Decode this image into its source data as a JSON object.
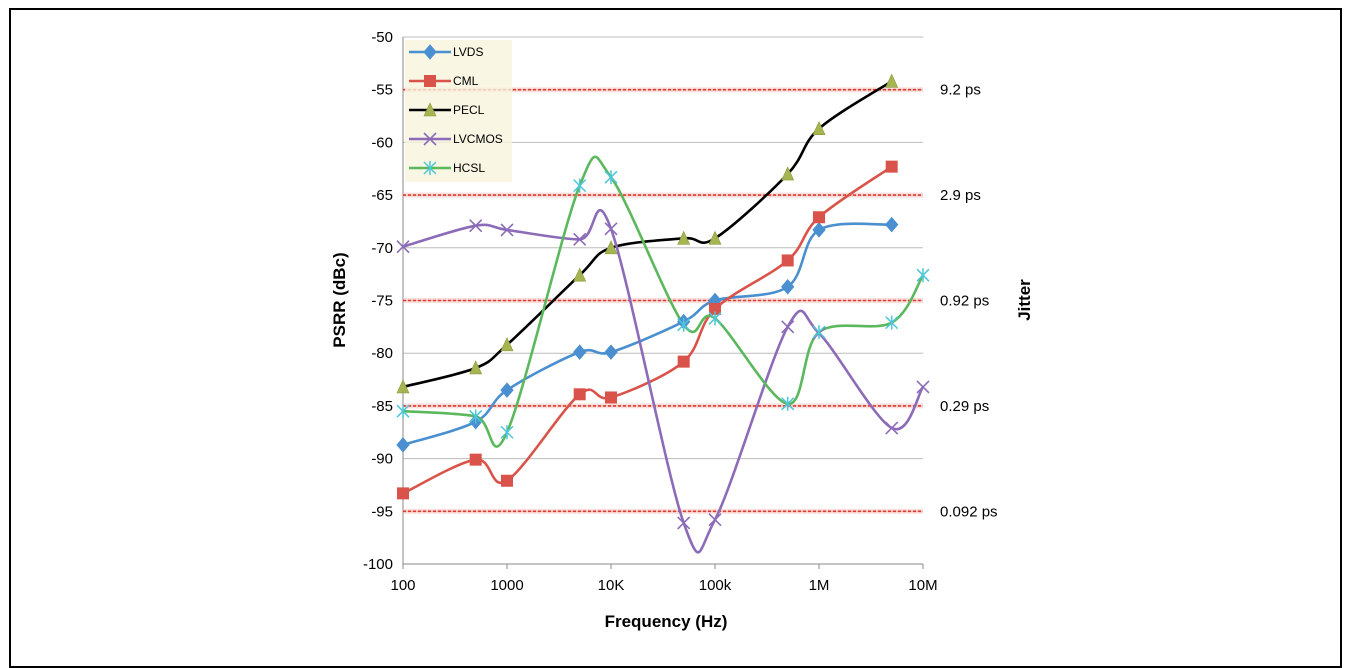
{
  "chart_data": {
    "type": "line",
    "x_scale": "log",
    "xlabel": "Frequency (Hz)",
    "ylabel": "PSRR (dBc)",
    "y2label": "Jitter",
    "xlim": [
      100,
      10000000
    ],
    "ylim": [
      -100,
      -50
    ],
    "x_ticks": [
      {
        "value": 100,
        "label": "100"
      },
      {
        "value": 1000,
        "label": "1000"
      },
      {
        "value": 10000,
        "label": "10K"
      },
      {
        "value": 100000,
        "label": "100k"
      },
      {
        "value": 1000000,
        "label": "1M"
      },
      {
        "value": 10000000,
        "label": "10M"
      }
    ],
    "y_ticks": [
      -50,
      -55,
      -60,
      -65,
      -70,
      -75,
      -80,
      -85,
      -90,
      -95,
      -100
    ],
    "jitter_lines": [
      {
        "y": -55,
        "label": "9.2 ps"
      },
      {
        "y": -65,
        "label": "2.9 ps"
      },
      {
        "y": -75,
        "label": "0.92 ps"
      },
      {
        "y": -85,
        "label": "0.29 ps"
      },
      {
        "y": -95,
        "label": "0.092 ps"
      }
    ],
    "grid": true,
    "legend_position": "top-left",
    "series": [
      {
        "name": "LVDS",
        "color": "#4a8fcf",
        "marker": "diamond",
        "x": [
          100,
          500,
          1000,
          5000,
          10000,
          50000,
          100000,
          500000,
          1000000,
          5000000
        ],
        "y": [
          -88.7,
          -86.5,
          -83.5,
          -79.9,
          -79.9,
          -77,
          -75,
          -73.7,
          -68.3,
          -67.8
        ]
      },
      {
        "name": "CML",
        "color": "#d9534a",
        "marker": "square",
        "x": [
          100,
          500,
          1000,
          5000,
          10000,
          50000,
          100000,
          500000,
          1000000,
          5000000
        ],
        "y": [
          -93.3,
          -90.1,
          -92.1,
          -83.9,
          -84.2,
          -80.8,
          -75.8,
          -71.2,
          -67.1,
          -62.3
        ]
      },
      {
        "name": "PECL",
        "color": "#000000",
        "marker": "triangle",
        "marker_color": "#a6b451",
        "x": [
          100,
          500,
          1000,
          5000,
          10000,
          50000,
          100000,
          500000,
          1000000,
          5000000
        ],
        "y": [
          -83.2,
          -81.4,
          -79.2,
          -72.6,
          -70,
          -69.1,
          -69.1,
          -63,
          -58.7,
          -54.2
        ]
      },
      {
        "name": "LVCMOS",
        "color": "#8c6bb8",
        "marker": "x",
        "x": [
          100,
          500,
          1000,
          5000,
          10000,
          50000,
          100000,
          500000,
          1000000,
          5000000,
          10000000
        ],
        "y": [
          -69.9,
          -67.9,
          -68.3,
          -69.2,
          -68.2,
          -96.1,
          -95.8,
          -77.5,
          -78.1,
          -87.1,
          -83.2
        ]
      },
      {
        "name": "HCSL",
        "color": "#5cb85c",
        "marker": "star",
        "marker_color": "#4cc6d8",
        "x": [
          100,
          500,
          1000,
          5000,
          10000,
          50000,
          100000,
          500000,
          1000000,
          5000000,
          10000000
        ],
        "y": [
          -85.5,
          -86,
          -87.5,
          -64.1,
          -63.3,
          -77.3,
          -76.7,
          -84.8,
          -78,
          -77.1,
          -72.6
        ]
      }
    ]
  }
}
